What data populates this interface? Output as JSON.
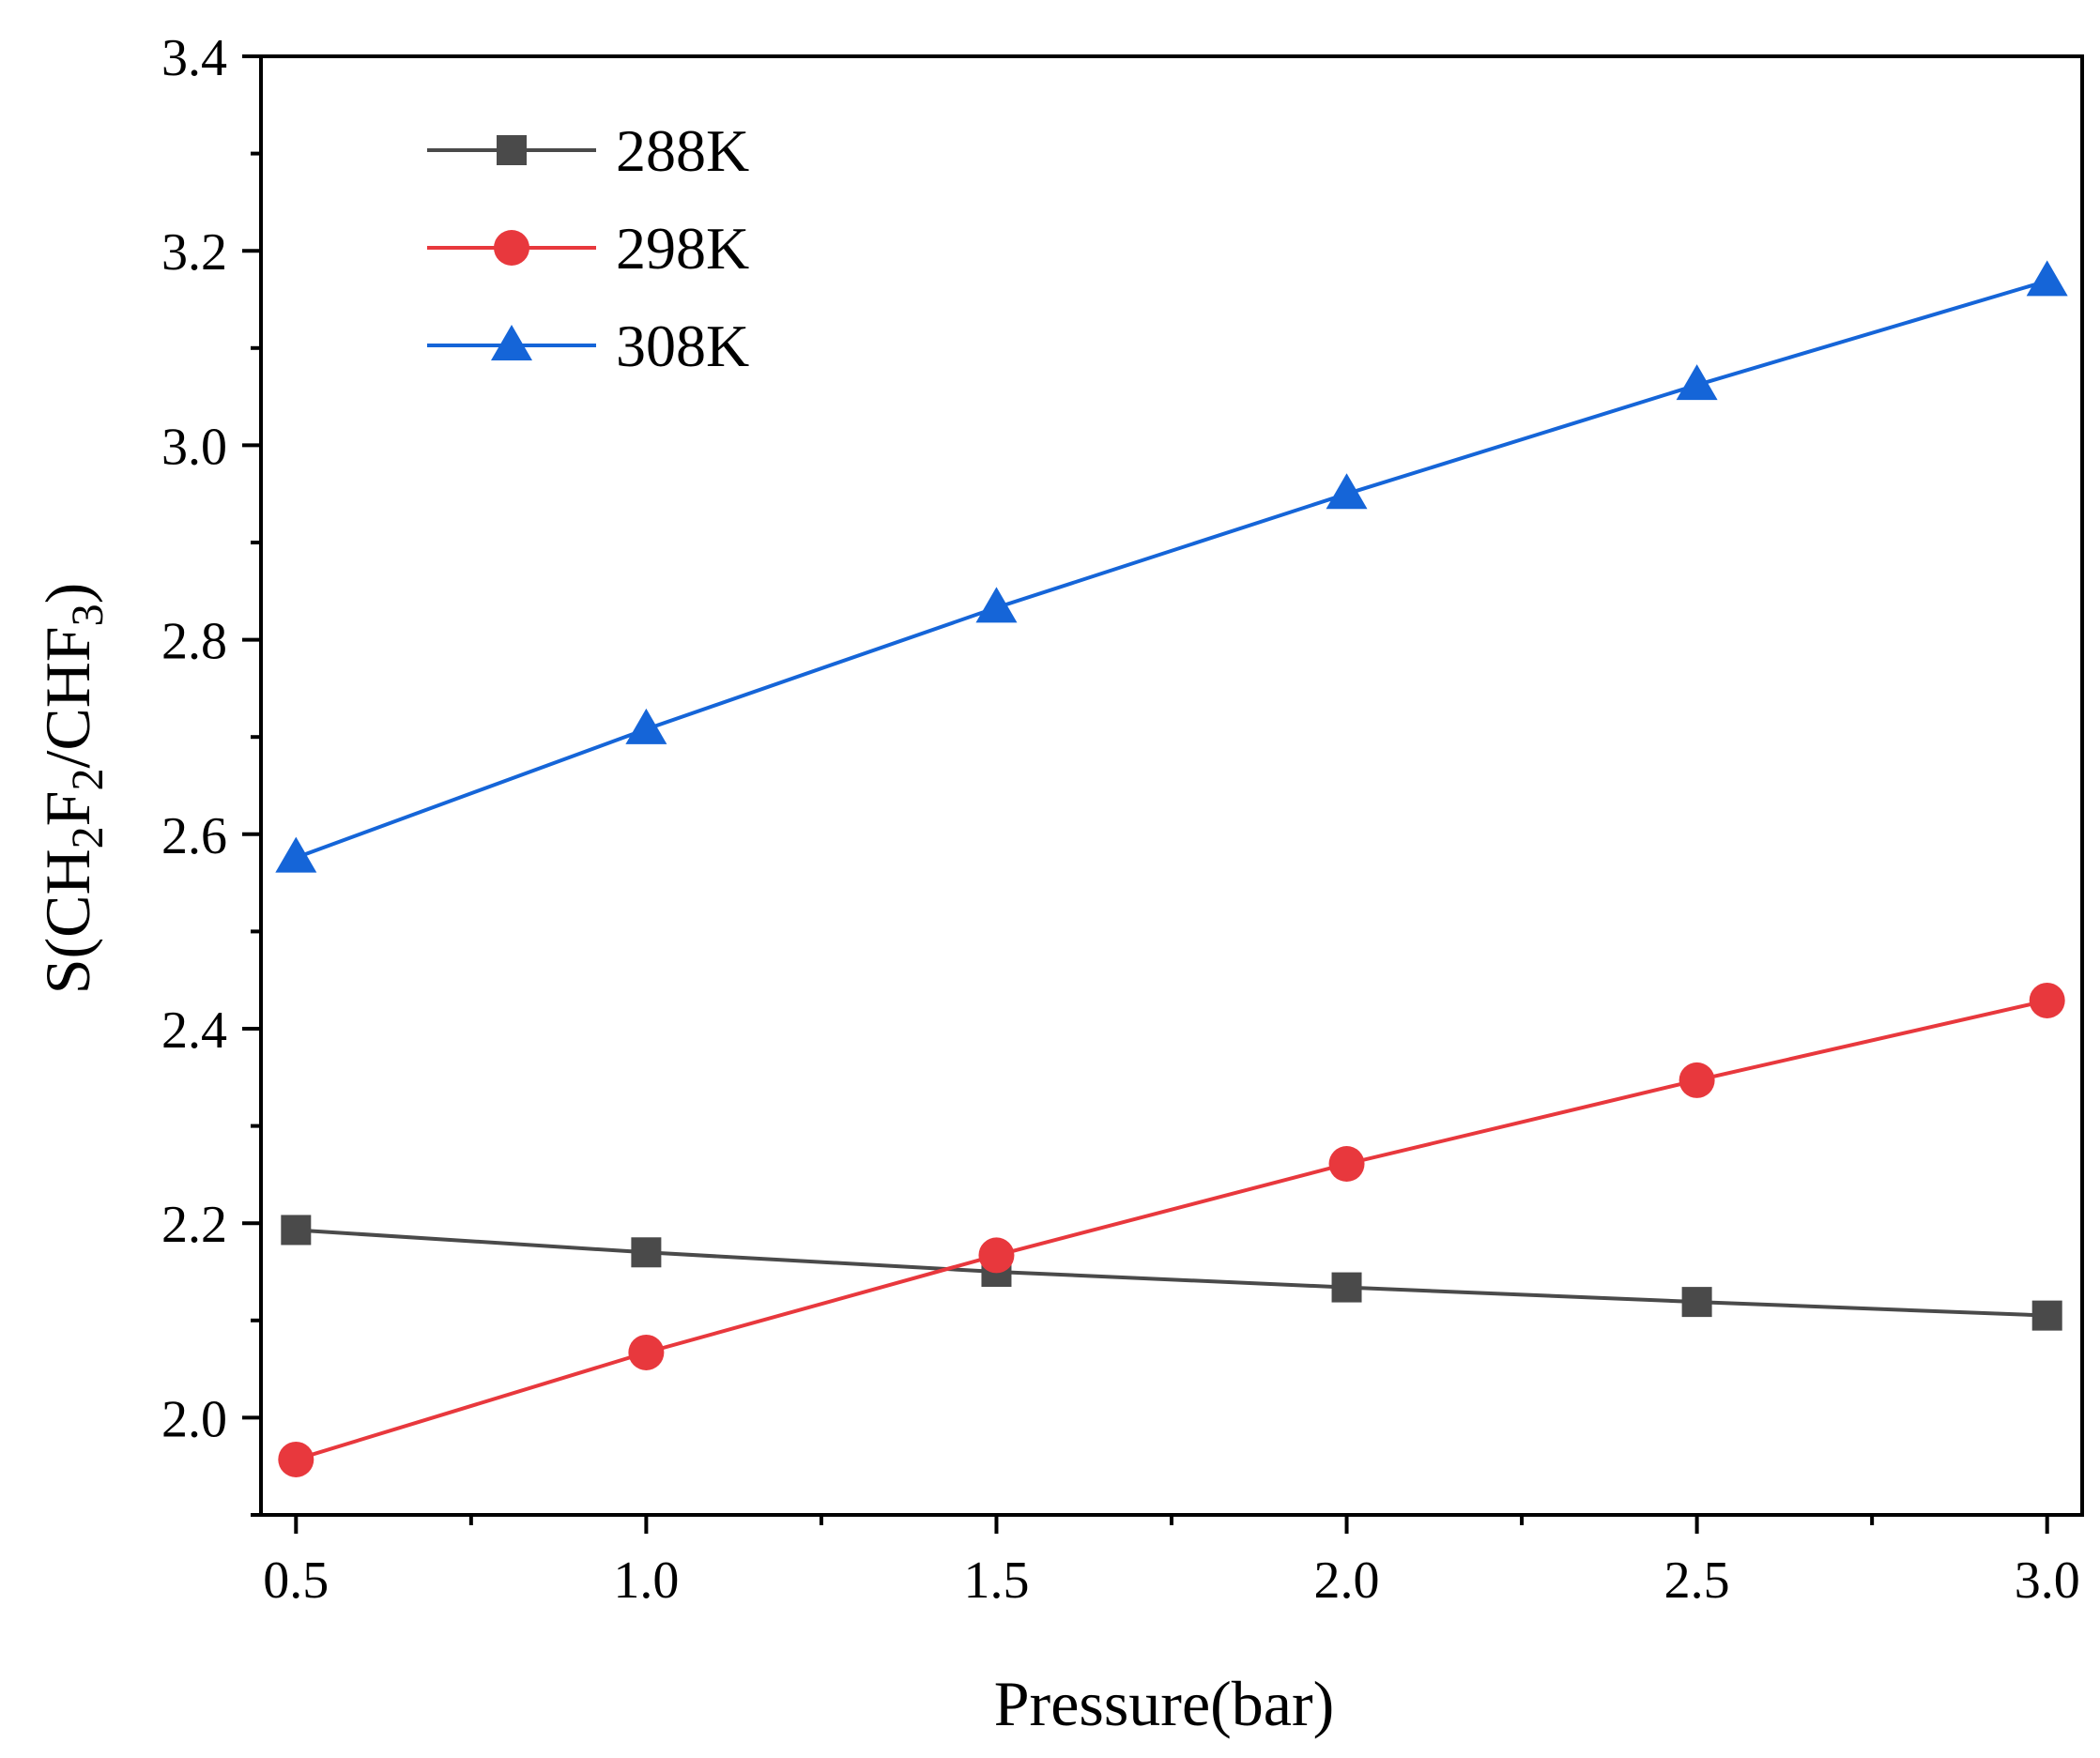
{
  "chart_data": {
    "type": "line",
    "title": "",
    "xlabel": "Pressure(bar)",
    "ylabel": {
      "parts": [
        "S(CH",
        "2",
        "F",
        "2",
        "/CHF",
        "3",
        ")"
      ]
    },
    "x": [
      0.5,
      1.0,
      1.5,
      2.0,
      2.5,
      3.0
    ],
    "xlim": [
      0.45,
      3.05
    ],
    "ylim": [
      1.9,
      3.4
    ],
    "xticks": [
      "0.5",
      "1.0",
      "1.5",
      "2.0",
      "2.5",
      "3.0"
    ],
    "yticks": [
      "2.0",
      "2.2",
      "2.4",
      "2.6",
      "2.8",
      "3.0",
      "3.2",
      "3.4"
    ],
    "grid": false,
    "legend_position": "top-left",
    "series": [
      {
        "name": "288K",
        "marker": "square",
        "color": "#4a4a4a",
        "values": [
          2.193,
          2.17,
          2.15,
          2.134,
          2.119,
          2.105
        ]
      },
      {
        "name": "298K",
        "marker": "circle",
        "color": "#e8383d",
        "values": [
          1.957,
          2.067,
          2.167,
          2.261,
          2.347,
          2.429
        ]
      },
      {
        "name": "308K",
        "marker": "triangle",
        "color": "#1565d8",
        "values": [
          2.576,
          2.708,
          2.833,
          2.95,
          3.062,
          3.169
        ]
      }
    ]
  }
}
